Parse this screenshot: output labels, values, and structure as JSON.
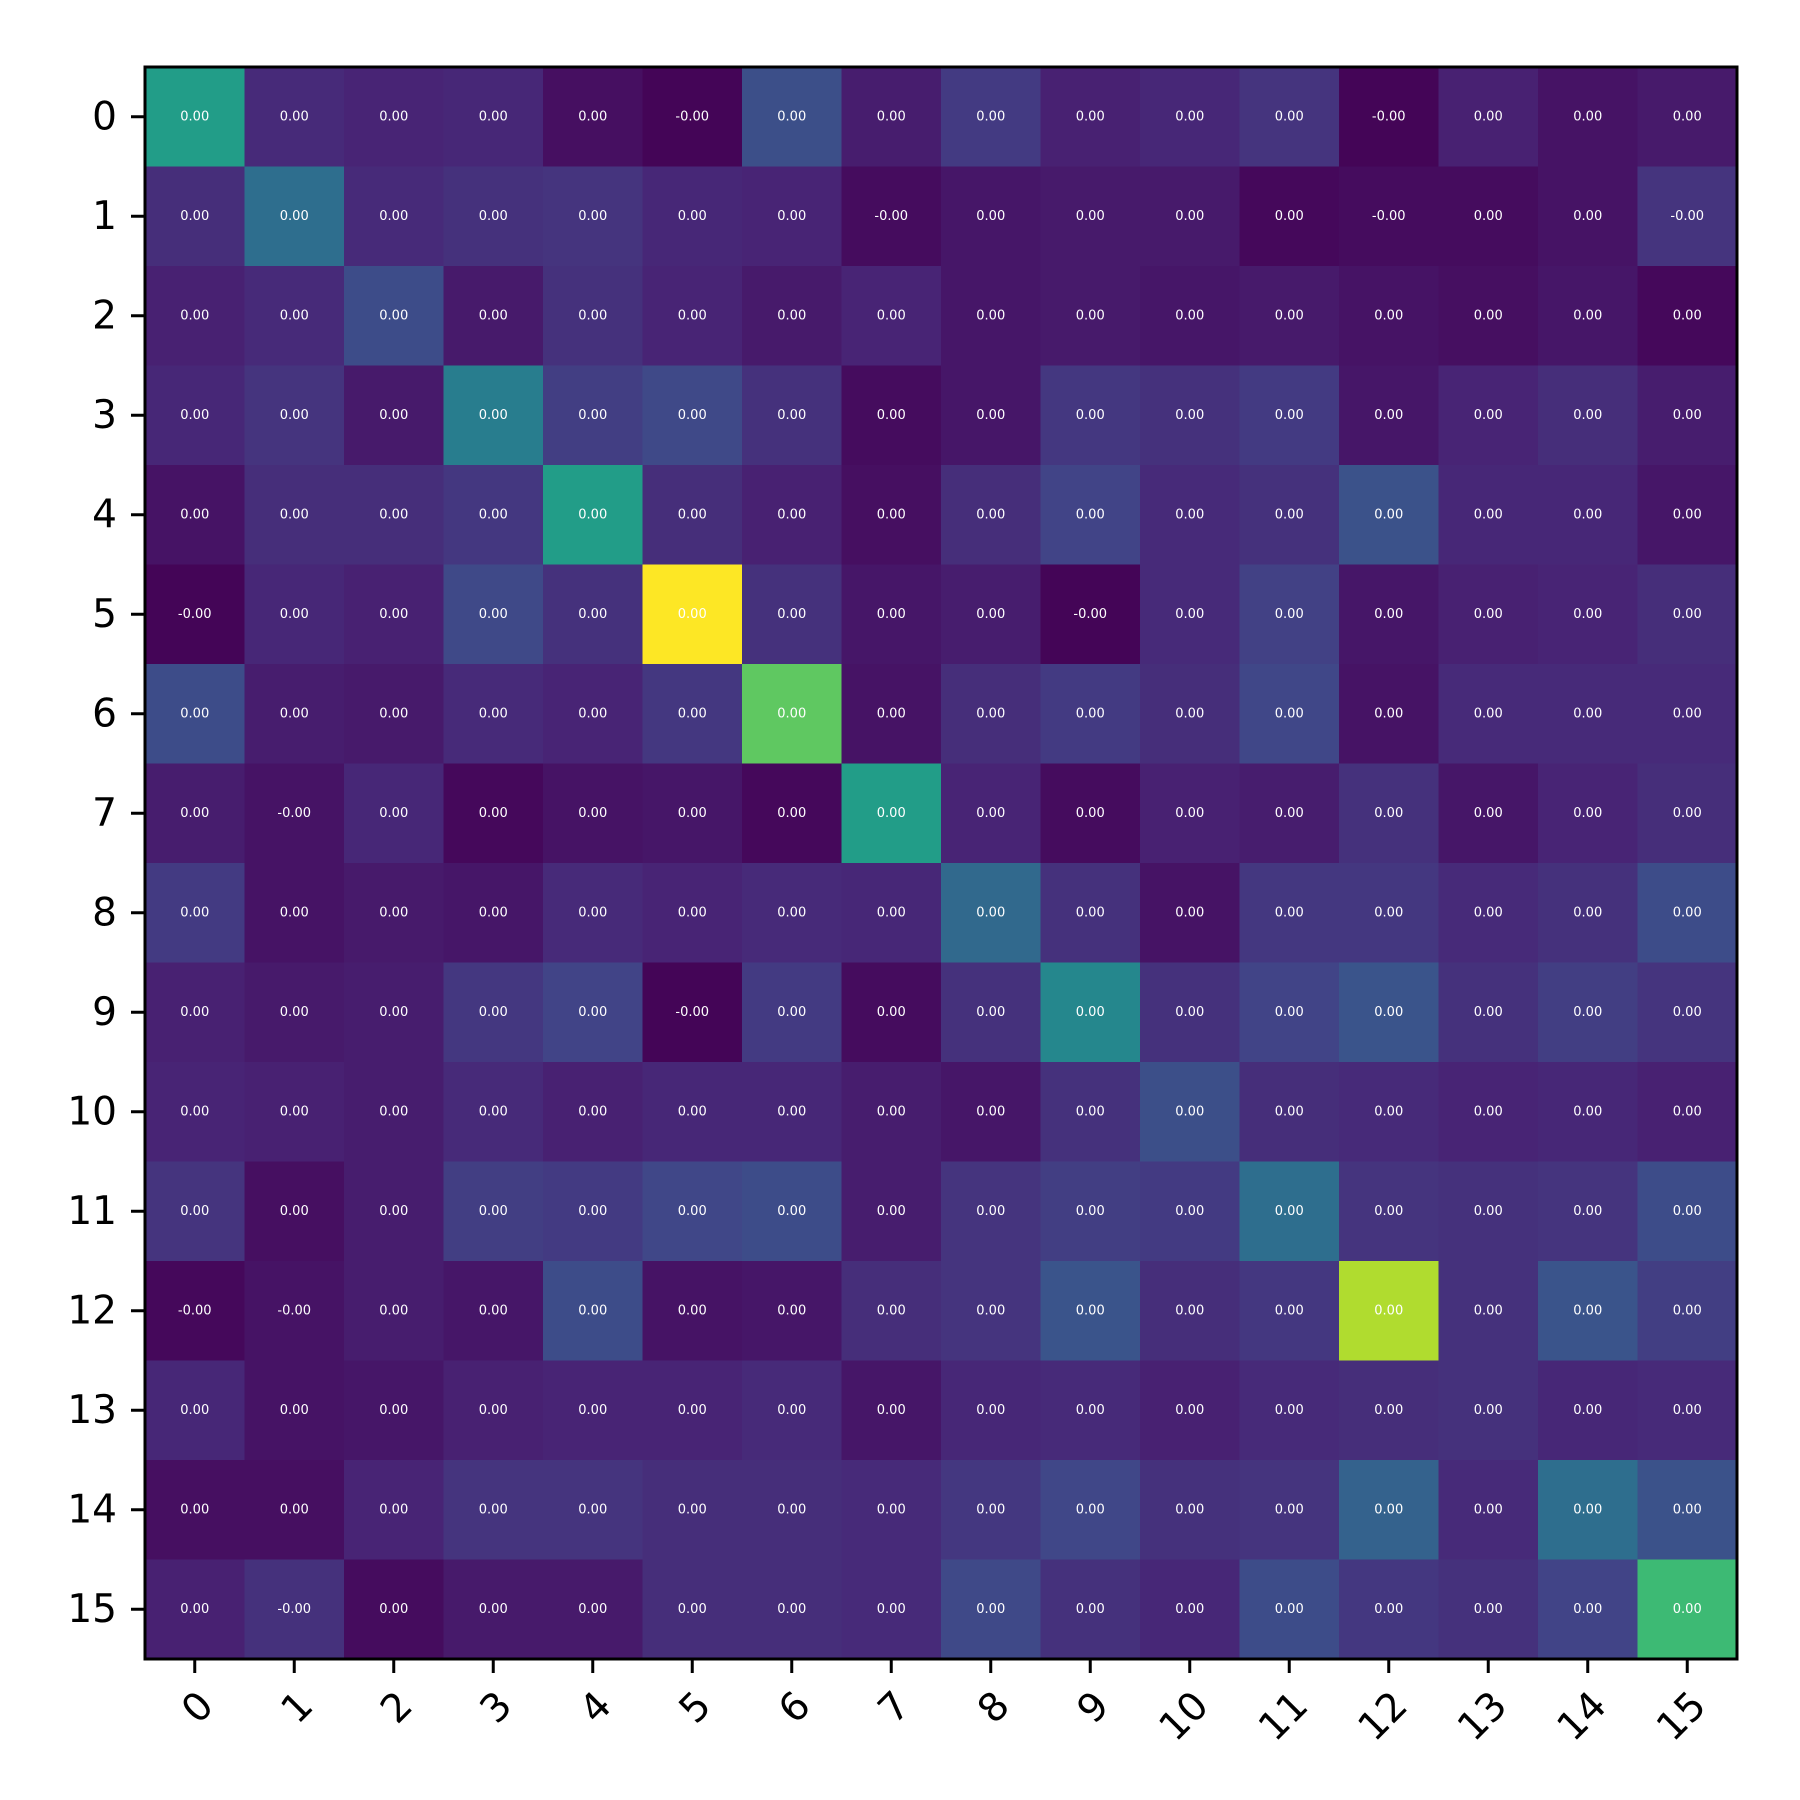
{
  "chart_data": {
    "type": "heatmap",
    "title": "",
    "xlabel": "",
    "ylabel": "",
    "x_categories": [
      "0",
      "1",
      "2",
      "3",
      "4",
      "5",
      "6",
      "7",
      "8",
      "9",
      "10",
      "11",
      "12",
      "13",
      "14",
      "15"
    ],
    "y_categories": [
      "0",
      "1",
      "2",
      "3",
      "4",
      "5",
      "6",
      "7",
      "8",
      "9",
      "10",
      "11",
      "12",
      "13",
      "14",
      "15"
    ],
    "colormap": "viridis",
    "color_range": [
      0,
      1
    ],
    "intensity": [
      [
        0.55,
        0.12,
        0.1,
        0.11,
        0.04,
        0.01,
        0.24,
        0.08,
        0.17,
        0.09,
        0.11,
        0.15,
        0.01,
        0.09,
        0.05,
        0.07
      ],
      [
        0.13,
        0.36,
        0.12,
        0.14,
        0.15,
        0.11,
        0.1,
        0.03,
        0.06,
        0.07,
        0.07,
        0.02,
        0.03,
        0.03,
        0.05,
        0.15
      ],
      [
        0.09,
        0.12,
        0.23,
        0.07,
        0.14,
        0.1,
        0.07,
        0.1,
        0.06,
        0.07,
        0.06,
        0.07,
        0.05,
        0.04,
        0.06,
        0.02
      ],
      [
        0.11,
        0.15,
        0.07,
        0.42,
        0.18,
        0.22,
        0.14,
        0.03,
        0.06,
        0.16,
        0.14,
        0.17,
        0.06,
        0.1,
        0.13,
        0.08
      ],
      [
        0.05,
        0.13,
        0.13,
        0.16,
        0.55,
        0.13,
        0.09,
        0.04,
        0.13,
        0.2,
        0.12,
        0.14,
        0.25,
        0.11,
        0.11,
        0.06
      ],
      [
        0.01,
        0.11,
        0.09,
        0.22,
        0.14,
        1.0,
        0.14,
        0.06,
        0.08,
        0.01,
        0.12,
        0.19,
        0.06,
        0.09,
        0.1,
        0.13
      ],
      [
        0.23,
        0.08,
        0.07,
        0.12,
        0.1,
        0.16,
        0.75,
        0.05,
        0.13,
        0.17,
        0.13,
        0.21,
        0.05,
        0.12,
        0.12,
        0.12
      ],
      [
        0.08,
        0.05,
        0.11,
        0.02,
        0.05,
        0.06,
        0.02,
        0.55,
        0.1,
        0.03,
        0.09,
        0.08,
        0.14,
        0.06,
        0.1,
        0.13
      ],
      [
        0.17,
        0.05,
        0.07,
        0.06,
        0.12,
        0.1,
        0.12,
        0.11,
        0.34,
        0.14,
        0.05,
        0.16,
        0.16,
        0.12,
        0.14,
        0.23
      ],
      [
        0.09,
        0.07,
        0.08,
        0.16,
        0.2,
        0.01,
        0.17,
        0.03,
        0.14,
        0.46,
        0.14,
        0.2,
        0.26,
        0.14,
        0.18,
        0.15
      ],
      [
        0.1,
        0.09,
        0.08,
        0.12,
        0.09,
        0.11,
        0.11,
        0.08,
        0.06,
        0.14,
        0.24,
        0.13,
        0.12,
        0.1,
        0.11,
        0.09
      ],
      [
        0.15,
        0.04,
        0.08,
        0.18,
        0.17,
        0.21,
        0.23,
        0.08,
        0.15,
        0.18,
        0.17,
        0.36,
        0.15,
        0.14,
        0.15,
        0.23
      ],
      [
        0.02,
        0.05,
        0.08,
        0.06,
        0.23,
        0.05,
        0.06,
        0.13,
        0.15,
        0.26,
        0.13,
        0.16,
        0.88,
        0.14,
        0.26,
        0.18
      ],
      [
        0.11,
        0.05,
        0.06,
        0.09,
        0.1,
        0.1,
        0.12,
        0.06,
        0.11,
        0.12,
        0.09,
        0.12,
        0.13,
        0.14,
        0.11,
        0.12
      ],
      [
        0.04,
        0.04,
        0.1,
        0.15,
        0.15,
        0.13,
        0.13,
        0.12,
        0.16,
        0.21,
        0.14,
        0.15,
        0.31,
        0.12,
        0.36,
        0.25
      ],
      [
        0.09,
        0.14,
        0.03,
        0.07,
        0.07,
        0.13,
        0.13,
        0.12,
        0.22,
        0.14,
        0.11,
        0.23,
        0.16,
        0.14,
        0.2,
        0.68
      ]
    ],
    "cell_labels": [
      [
        "0.00",
        "0.00",
        "0.00",
        "0.00",
        "0.00",
        "-0.00",
        "0.00",
        "0.00",
        "0.00",
        "0.00",
        "0.00",
        "0.00",
        "-0.00",
        "0.00",
        "0.00",
        "0.00"
      ],
      [
        "0.00",
        "0.00",
        "0.00",
        "0.00",
        "0.00",
        "0.00",
        "0.00",
        "-0.00",
        "0.00",
        "0.00",
        "0.00",
        "0.00",
        "-0.00",
        "0.00",
        "0.00",
        "-0.00"
      ],
      [
        "0.00",
        "0.00",
        "0.00",
        "0.00",
        "0.00",
        "0.00",
        "0.00",
        "0.00",
        "0.00",
        "0.00",
        "0.00",
        "0.00",
        "0.00",
        "0.00",
        "0.00",
        "0.00"
      ],
      [
        "0.00",
        "0.00",
        "0.00",
        "0.00",
        "0.00",
        "0.00",
        "0.00",
        "0.00",
        "0.00",
        "0.00",
        "0.00",
        "0.00",
        "0.00",
        "0.00",
        "0.00",
        "0.00"
      ],
      [
        "0.00",
        "0.00",
        "0.00",
        "0.00",
        "0.00",
        "0.00",
        "0.00",
        "0.00",
        "0.00",
        "0.00",
        "0.00",
        "0.00",
        "0.00",
        "0.00",
        "0.00",
        "0.00"
      ],
      [
        "-0.00",
        "0.00",
        "0.00",
        "0.00",
        "0.00",
        "0.00",
        "0.00",
        "0.00",
        "0.00",
        "-0.00",
        "0.00",
        "0.00",
        "0.00",
        "0.00",
        "0.00",
        "0.00"
      ],
      [
        "0.00",
        "0.00",
        "0.00",
        "0.00",
        "0.00",
        "0.00",
        "0.00",
        "0.00",
        "0.00",
        "0.00",
        "0.00",
        "0.00",
        "0.00",
        "0.00",
        "0.00",
        "0.00"
      ],
      [
        "0.00",
        "-0.00",
        "0.00",
        "0.00",
        "0.00",
        "0.00",
        "0.00",
        "0.00",
        "0.00",
        "0.00",
        "0.00",
        "0.00",
        "0.00",
        "0.00",
        "0.00",
        "0.00"
      ],
      [
        "0.00",
        "0.00",
        "0.00",
        "0.00",
        "0.00",
        "0.00",
        "0.00",
        "0.00",
        "0.00",
        "0.00",
        "0.00",
        "0.00",
        "0.00",
        "0.00",
        "0.00",
        "0.00"
      ],
      [
        "0.00",
        "0.00",
        "0.00",
        "0.00",
        "0.00",
        "-0.00",
        "0.00",
        "0.00",
        "0.00",
        "0.00",
        "0.00",
        "0.00",
        "0.00",
        "0.00",
        "0.00",
        "0.00"
      ],
      [
        "0.00",
        "0.00",
        "0.00",
        "0.00",
        "0.00",
        "0.00",
        "0.00",
        "0.00",
        "0.00",
        "0.00",
        "0.00",
        "0.00",
        "0.00",
        "0.00",
        "0.00",
        "0.00"
      ],
      [
        "0.00",
        "0.00",
        "0.00",
        "0.00",
        "0.00",
        "0.00",
        "0.00",
        "0.00",
        "0.00",
        "0.00",
        "0.00",
        "0.00",
        "0.00",
        "0.00",
        "0.00",
        "0.00"
      ],
      [
        "-0.00",
        "-0.00",
        "0.00",
        "0.00",
        "0.00",
        "0.00",
        "0.00",
        "0.00",
        "0.00",
        "0.00",
        "0.00",
        "0.00",
        "0.00",
        "0.00",
        "0.00",
        "0.00"
      ],
      [
        "0.00",
        "0.00",
        "0.00",
        "0.00",
        "0.00",
        "0.00",
        "0.00",
        "0.00",
        "0.00",
        "0.00",
        "0.00",
        "0.00",
        "0.00",
        "0.00",
        "0.00",
        "0.00"
      ],
      [
        "0.00",
        "0.00",
        "0.00",
        "0.00",
        "0.00",
        "0.00",
        "0.00",
        "0.00",
        "0.00",
        "0.00",
        "0.00",
        "0.00",
        "0.00",
        "0.00",
        "0.00",
        "0.00"
      ],
      [
        "0.00",
        "-0.00",
        "0.00",
        "0.00",
        "0.00",
        "0.00",
        "0.00",
        "0.00",
        "0.00",
        "0.00",
        "0.00",
        "0.00",
        "0.00",
        "0.00",
        "0.00",
        "0.00"
      ]
    ],
    "grid": false,
    "legend": "none"
  }
}
